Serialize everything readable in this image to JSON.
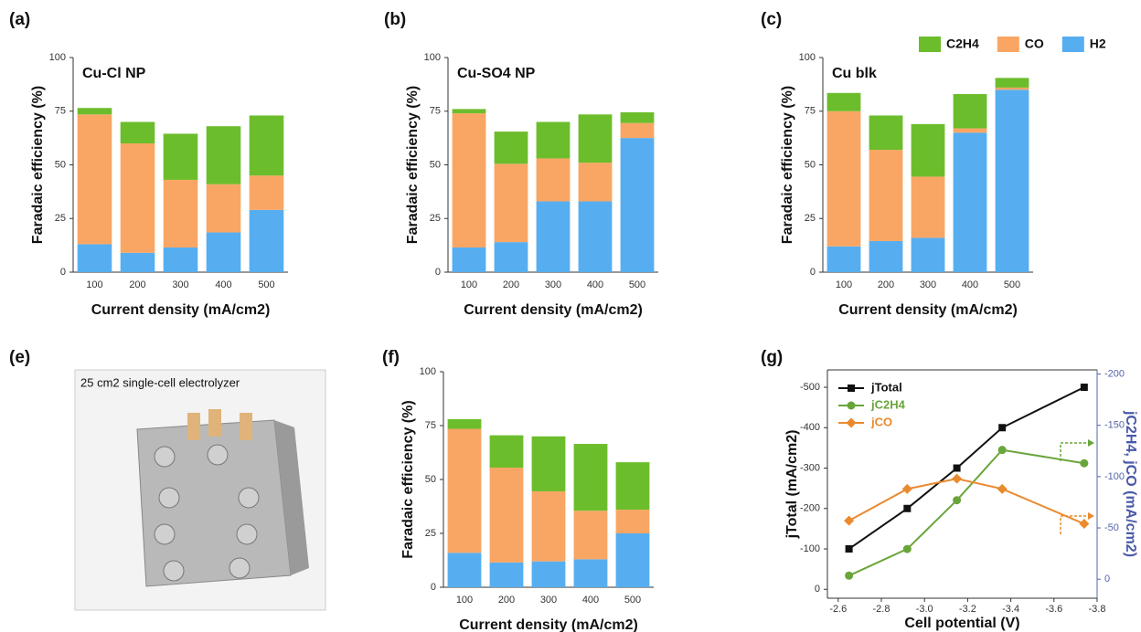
{
  "chart_data": [
    {
      "type": "bar",
      "label": "(a)",
      "title": "Cu-Cl NP",
      "xlabel": "Current density (mA/cm2)",
      "ylabel": "Faradaic efficiency (%)",
      "categories": [
        "100",
        "200",
        "300",
        "400",
        "500"
      ],
      "ylim": [
        0,
        100
      ],
      "yticks": [
        0,
        25,
        50,
        75,
        100
      ],
      "series": [
        {
          "name": "H2",
          "color": "#56aef0",
          "values": [
            13,
            9,
            11.5,
            18.5,
            29
          ]
        },
        {
          "name": "CO",
          "color": "#f9a664",
          "values": [
            60.5,
            51,
            31.5,
            22.5,
            16
          ]
        },
        {
          "name": "C2H4",
          "color": "#6cbd2c",
          "values": [
            3,
            10,
            21.5,
            27,
            28
          ]
        }
      ]
    },
    {
      "type": "bar",
      "label": "(b)",
      "title": "Cu-SO4 NP",
      "xlabel": "Current density (mA/cm2)",
      "ylabel": "Faradaic efficiency (%)",
      "categories": [
        "100",
        "200",
        "300",
        "400",
        "500"
      ],
      "ylim": [
        0,
        100
      ],
      "yticks": [
        0,
        25,
        50,
        75,
        100
      ],
      "series": [
        {
          "name": "H2",
          "color": "#56aef0",
          "values": [
            11.5,
            14,
            33,
            33,
            62.5
          ]
        },
        {
          "name": "CO",
          "color": "#f9a664",
          "values": [
            62.5,
            36.5,
            20,
            18,
            7
          ]
        },
        {
          "name": "C2H4",
          "color": "#6cbd2c",
          "values": [
            2,
            15,
            17,
            22.5,
            5
          ]
        }
      ]
    },
    {
      "type": "bar",
      "label": "(c)",
      "title": "Cu blk",
      "xlabel": "Current density (mA/cm2)",
      "ylabel": "Faradaic efficiency (%)",
      "legend": "top-right",
      "categories": [
        "100",
        "200",
        "300",
        "400",
        "500"
      ],
      "ylim": [
        0,
        100
      ],
      "yticks": [
        0,
        25,
        50,
        75,
        100
      ],
      "series": [
        {
          "name": "H2",
          "color": "#56aef0",
          "values": [
            12,
            14.5,
            16,
            65,
            85
          ]
        },
        {
          "name": "CO",
          "color": "#f9a664",
          "values": [
            63,
            42.5,
            28.5,
            2,
            1
          ]
        },
        {
          "name": "C2H4",
          "color": "#6cbd2c",
          "values": [
            8.5,
            16,
            24.5,
            16,
            4.5
          ]
        }
      ]
    },
    {
      "type": "bar",
      "label": "(f)",
      "xlabel": "Current density (mA/cm2)",
      "ylabel": "Faradaic efficiency (%)",
      "categories": [
        "100",
        "200",
        "300",
        "400",
        "500"
      ],
      "ylim": [
        0,
        100
      ],
      "yticks": [
        0,
        25,
        50,
        75,
        100
      ],
      "series": [
        {
          "name": "H2",
          "color": "#56aef0",
          "values": [
            16,
            11.5,
            12,
            13,
            25
          ]
        },
        {
          "name": "CO",
          "color": "#f9a664",
          "values": [
            57.5,
            44,
            32.5,
            22.5,
            11
          ]
        },
        {
          "name": "C2H4",
          "color": "#6cbd2c",
          "values": [
            4.5,
            15,
            25.5,
            31,
            22
          ]
        }
      ]
    },
    {
      "type": "line",
      "label": "(g)",
      "xlabel": "Cell potential (V)",
      "ylabel": "jTotal (mA/cm2)",
      "y2label": "jC2H4, jCO (mA/cm2)",
      "legend": "top-left",
      "x": [
        -2.65,
        -2.92,
        -3.15,
        -3.36,
        -3.74
      ],
      "xlim": [
        -2.55,
        -3.8
      ],
      "xticks": [
        -2.6,
        -2.8,
        {
          "value": -3,
          "label": "-3.0"
        },
        -3.2,
        -3.4,
        -3.6,
        -3.8
      ],
      "ylim": [
        22,
        -543
      ],
      "yticks": [
        0,
        -100,
        -200,
        -300,
        -400,
        -500
      ],
      "y2lim": [
        18.5,
        -204
      ],
      "y2ticks": [
        0,
        -50,
        -100,
        -150,
        -200
      ],
      "series": [
        {
          "name": "jTotal",
          "color": "#111111",
          "marker": "square",
          "values": [
            -100,
            -200,
            -300,
            -400,
            -500
          ]
        },
        {
          "name": "jC2H4",
          "color": "#6aa53a",
          "marker": "circle",
          "axis": "y2",
          "values": [
            -3.5,
            -29.5,
            -77,
            -126,
            -113
          ]
        },
        {
          "name": "jCO",
          "color": "#ea8a2e",
          "marker": "diamond",
          "axis": "y2",
          "values": [
            -57,
            -88,
            -98,
            -88,
            -54
          ]
        }
      ]
    }
  ],
  "photo": {
    "label": "(e)",
    "caption": "25 cm2 single-cell electrolyzer"
  }
}
